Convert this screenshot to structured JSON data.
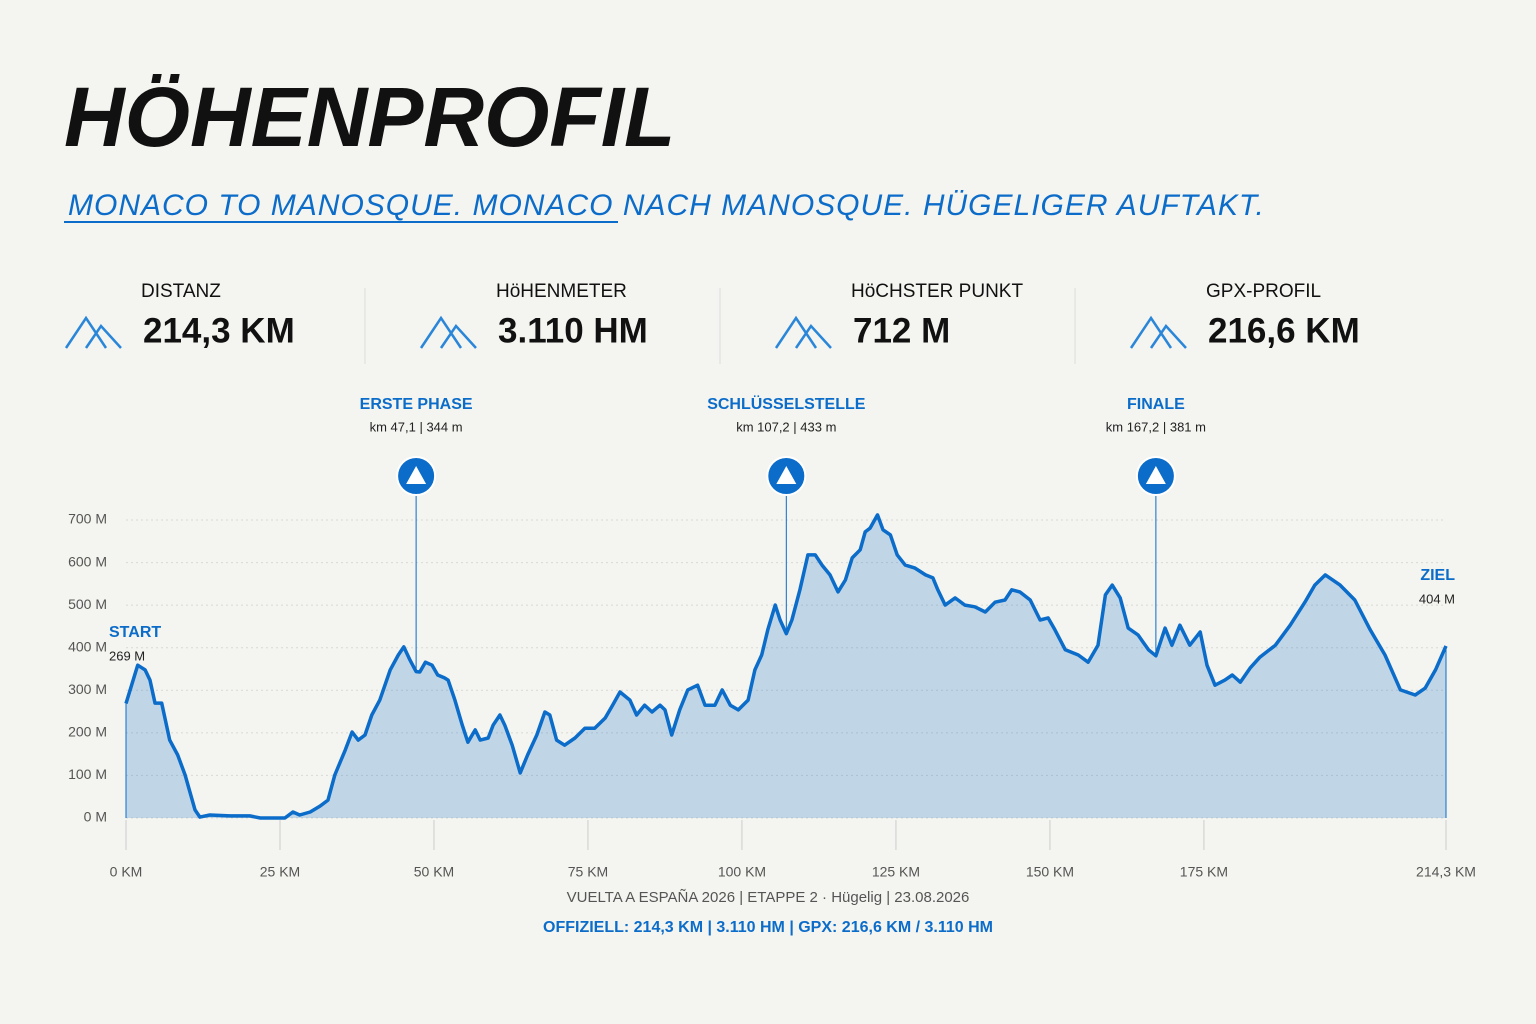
{
  "title": "HÖHENPROFIL",
  "subtitle": "MONACO TO MANOSQUE. MONACO NACH MANOSQUE. HÜGELIGER AUFTAKT.",
  "stats": [
    {
      "label": "DISTANZ",
      "value": "214,3 KM"
    },
    {
      "label": "HöHENMETER",
      "value": "3.110 HM"
    },
    {
      "label": "HöCHSTER PUNKT",
      "value": "712 M"
    },
    {
      "label": "GPX-PROFIL",
      "value": "216,6 KM"
    }
  ],
  "chart_data": {
    "type": "area",
    "color": "#0b6cc9",
    "xlim": [
      0,
      214.3
    ],
    "ylim": [
      0,
      700
    ],
    "xticks": [
      {
        "value": 0,
        "label": "0 KM"
      },
      {
        "value": 25,
        "label": "25 KM"
      },
      {
        "value": 50,
        "label": "50 KM"
      },
      {
        "value": 75,
        "label": "75 KM"
      },
      {
        "value": 100,
        "label": "100 KM"
      },
      {
        "value": 125,
        "label": "125 KM"
      },
      {
        "value": 150,
        "label": "150 KM"
      },
      {
        "value": 175,
        "label": "175 KM"
      },
      {
        "value": 214.3,
        "label": "214,3 KM"
      }
    ],
    "yticks": [
      {
        "value": 0,
        "label": "0 M"
      },
      {
        "value": 100,
        "label": "100 M"
      },
      {
        "value": 200,
        "label": "200 M"
      },
      {
        "value": 300,
        "label": "300 M"
      },
      {
        "value": 400,
        "label": "400 M"
      },
      {
        "value": 500,
        "label": "500 M"
      },
      {
        "value": 600,
        "label": "600 M"
      },
      {
        "value": 700,
        "label": "700 M"
      }
    ],
    "grid": true,
    "x": [
      0,
      1.9,
      3.1,
      3.9,
      4.7,
      5.8,
      7.1,
      8.4,
      9.6,
      11.2,
      12,
      13.6,
      16.9,
      20.1,
      21.8,
      25.8,
      27.1,
      28.2,
      29.9,
      31.5,
      32.8,
      33.9,
      35.6,
      36.7,
      37.7,
      38.8,
      39.9,
      41.2,
      42.9,
      44.2,
      45.1,
      46.1,
      47.1,
      47.7,
      48.6,
      49.7,
      50.6,
      51.7,
      52.3,
      53.4,
      54.6,
      55.5,
      56.7,
      57.5,
      58.8,
      59.6,
      60.7,
      61.5,
      62.7,
      64,
      65.2,
      66.7,
      68,
      68.8,
      69.9,
      71.2,
      72.9,
      74.5,
      76.1,
      77.8,
      79,
      80.2,
      81.8,
      82.9,
      84.2,
      85.4,
      86.7,
      87.5,
      88.6,
      89.9,
      91.2,
      92.8,
      94,
      95.6,
      96.8,
      98.1,
      99.4,
      101,
      102.1,
      103.2,
      104.2,
      105.4,
      106.2,
      107.2,
      108.1,
      109.4,
      110.7,
      111.9,
      113,
      114.3,
      115.6,
      116.8,
      117.9,
      119.2,
      120,
      120.8,
      122,
      122.9,
      124.1,
      125.2,
      126.5,
      128.1,
      129.8,
      131,
      131.8,
      133,
      134.6,
      136.2,
      137.8,
      139.5,
      141.1,
      142.7,
      143.8,
      145.1,
      146.8,
      148.4,
      149.7,
      150.8,
      152.5,
      154.6,
      156.2,
      157.8,
      159,
      160.1,
      161.4,
      162.7,
      164.3,
      166,
      167.2,
      168.7,
      169.8,
      171.1,
      172.7,
      174.4,
      175.5,
      176.8,
      178.4,
      179.6,
      180.9,
      182.5,
      184.1,
      186.6,
      189,
      191.4,
      193,
      194.7,
      197.1,
      199.5,
      202,
      204.4,
      206.9,
      209.3,
      210.9,
      212.6,
      214.3
    ],
    "values": [
      269,
      359,
      348,
      324,
      270,
      270,
      183,
      148,
      101,
      19,
      2,
      7,
      5,
      5,
      0,
      0,
      14,
      7,
      14,
      28,
      42,
      101,
      160,
      202,
      183,
      195,
      242,
      277,
      348,
      383,
      402,
      371,
      344,
      343,
      366,
      359,
      336,
      329,
      324,
      277,
      218,
      178,
      207,
      183,
      188,
      218,
      242,
      218,
      171,
      106,
      148,
      195,
      249,
      242,
      183,
      171,
      188,
      211,
      211,
      235,
      265,
      296,
      277,
      242,
      265,
      249,
      265,
      254,
      195,
      254,
      301,
      312,
      265,
      265,
      301,
      265,
      254,
      277,
      348,
      383,
      442,
      500,
      465,
      433,
      465,
      536,
      618,
      618,
      594,
      571,
      531,
      559,
      611,
      630,
      672,
      681,
      712,
      677,
      665,
      618,
      594,
      587,
      571,
      564,
      536,
      500,
      517,
      500,
      496,
      484,
      507,
      512,
      536,
      531,
      512,
      465,
      470,
      442,
      395,
      383,
      366,
      406,
      524,
      547,
      517,
      446,
      430,
      395,
      381,
      446,
      406,
      453,
      406,
      437,
      359,
      312,
      324,
      336,
      319,
      352,
      378,
      406,
      453,
      507,
      547,
      571,
      547,
      512,
      442,
      383,
      301,
      289,
      305,
      348,
      404
    ],
    "annotations": [
      {
        "label": "ERSTE PHASE",
        "text": "km 47,1 | 344 m",
        "x": 47.1,
        "y": 344
      },
      {
        "label": "SCHLÜSSELSTELLE",
        "text": "km 107,2 | 433 m",
        "x": 107.2,
        "y": 433
      },
      {
        "label": "FINALE",
        "text": "km 167,2 | 381 m",
        "x": 167.2,
        "y": 381
      }
    ],
    "start": {
      "label": "START",
      "text": "269 M"
    },
    "end": {
      "label": "ZIEL",
      "text": "404 M"
    }
  },
  "footer": {
    "line1": "VUELTA A ESPAÑA 2026 | ETAPPE 2 · Hügelig | 23.08.2026",
    "line2": "OFFIZIELL: 214,3 KM | 3.110 HM | GPX: 216,6 KM / 3.110 HM"
  }
}
